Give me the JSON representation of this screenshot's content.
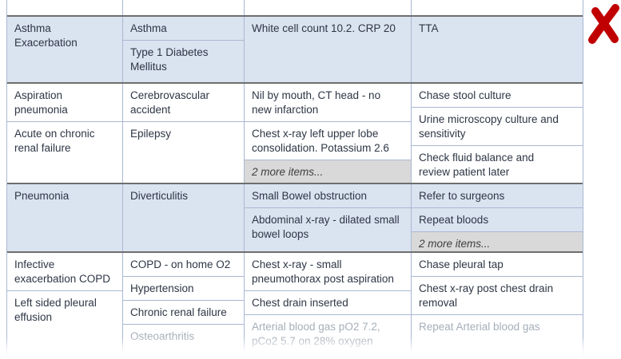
{
  "icons": {
    "x_mark": {
      "name": "x-mark-icon",
      "color": "#c00000"
    }
  },
  "colors": {
    "row_blue": "#dae3f0",
    "row_white": "#ffffff",
    "more_cell_bg": "#d9d9d9",
    "border_light": "#a9b8d2",
    "border_dark": "#6e6e6e",
    "text": "#2e3645",
    "text_faded": "#a6aeb9"
  },
  "table": {
    "groups": [
      {
        "style": "white",
        "partial_top_row": true,
        "cols": [
          [],
          [],
          [],
          []
        ]
      },
      {
        "style": "blue",
        "cols": [
          [
            {
              "text": "Asthma\nExacerbation"
            }
          ],
          [
            {
              "text": "Asthma"
            },
            {
              "text": "Type 1 Diabetes\nMellitus"
            }
          ],
          [
            {
              "text": "White cell count 10.2. CRP 20"
            }
          ],
          [
            {
              "text": "TTA"
            }
          ]
        ]
      },
      {
        "style": "white",
        "cols": [
          [
            {
              "text": "Aspiration\npneumonia"
            },
            {
              "text": "Acute on chronic\nrenal failure"
            }
          ],
          [
            {
              "text": "Cerebrovascular\naccident"
            },
            {
              "text": "Epilepsy"
            }
          ],
          [
            {
              "text": "Nil by mouth, CT head - no\nnew infarction"
            },
            {
              "text": "Chest x-ray left upper lobe\nconsolidation. Potassium 2.6"
            },
            {
              "text": "2 more items...",
              "more": true
            }
          ],
          [
            {
              "text": "Chase stool culture"
            },
            {
              "text": "Urine microscopy culture and\nsensitivity"
            },
            {
              "text": "Check fluid balance and\nreview patient later"
            }
          ]
        ]
      },
      {
        "style": "blue",
        "cols": [
          [
            {
              "text": "Pneumonia"
            }
          ],
          [
            {
              "text": "Diverticulitis"
            }
          ],
          [
            {
              "text": "Small Bowel obstruction"
            },
            {
              "text": "Abdominal x-ray - dilated small\nbowel loops"
            }
          ],
          [
            {
              "text": "Refer to surgeons"
            },
            {
              "text": "Repeat bloods"
            },
            {
              "text": "2 more items...",
              "more": true
            }
          ]
        ]
      },
      {
        "style": "white",
        "cols": [
          [
            {
              "text": "Infective\nexacerbation COPD"
            },
            {
              "text": "Left sided pleural\neffusion"
            }
          ],
          [
            {
              "text": "COPD - on home O2"
            },
            {
              "text": "Hypertension"
            },
            {
              "text": "Chronic renal failure"
            },
            {
              "text": "Osteoarthritis",
              "faded": true
            }
          ],
          [
            {
              "text": "Chest x-ray - small\npneumothorax post aspiration"
            },
            {
              "text": "Chest drain inserted"
            },
            {
              "text": "Arterial blood gas pO2 7.2,\npCo2 5.7 on 28% oxygen",
              "faded": true
            }
          ],
          [
            {
              "text": "Chase pleural tap"
            },
            {
              "text": "Chest x-ray post chest drain\nremoval"
            },
            {
              "text": "Repeat Arterial blood gas",
              "faded": true
            }
          ]
        ]
      }
    ]
  }
}
